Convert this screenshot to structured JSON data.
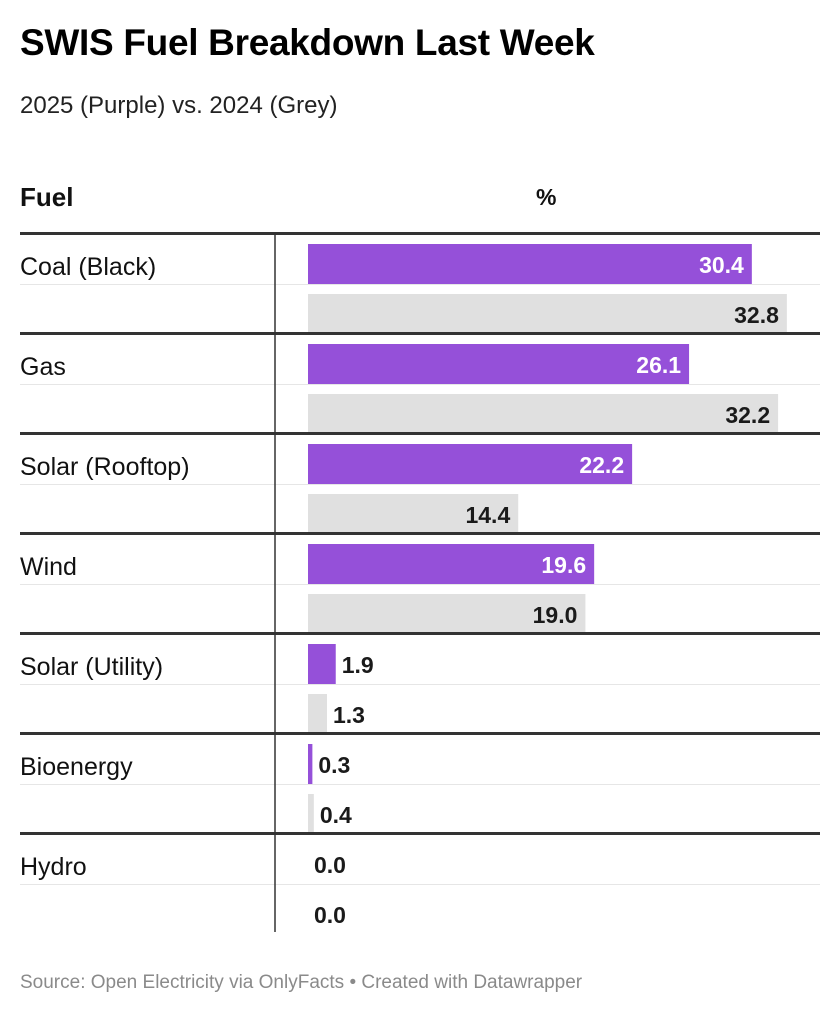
{
  "title": "SWIS Fuel Breakdown Last Week",
  "subtitle": "2025 (Purple) vs. 2024 (Grey)",
  "columns": {
    "fuel": "Fuel",
    "pct": "%"
  },
  "source": "Source: Open Electricity via OnlyFacts • Created with Datawrapper",
  "colors": {
    "y2025": "#9550d9",
    "y2024": "#e0e0e0",
    "label_on_purple": "#ffffff",
    "label_dark": "#1a1a1a"
  },
  "chart_data": {
    "type": "bar",
    "categories": [
      "Coal (Black)",
      "Gas",
      "Solar (Rooftop)",
      "Wind",
      "Solar (Utility)",
      "Bioenergy",
      "Hydro"
    ],
    "series": [
      {
        "values": [
          30.4,
          26.1,
          22.2,
          19.6,
          1.9,
          0.3,
          0.0
        ]
      },
      {
        "values": [
          32.8,
          32.2,
          14.4,
          19.0,
          1.3,
          0.4,
          0.0
        ]
      }
    ],
    "ylabel": "%"
  }
}
